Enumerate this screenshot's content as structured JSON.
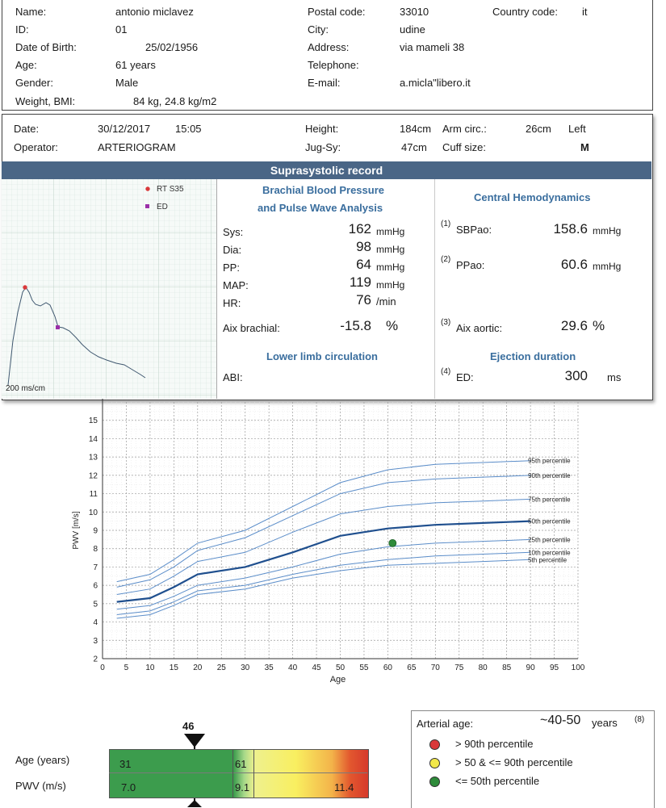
{
  "patient": {
    "name_label": "Name:",
    "name": "antonio miclavez",
    "id_label": "ID:",
    "id": "01",
    "dob_label": "Date of Birth:",
    "dob": "25/02/1956",
    "age_label": "Age:",
    "age": "61 years",
    "gender_label": "Gender:",
    "gender": "Male",
    "weight_label": "Weight, BMI:",
    "weight_bmi": "84 kg,  24.8 kg/m2",
    "postal_label": "Postal code:",
    "postal": "33010",
    "country_label": "Country code:",
    "country": "it",
    "city_label": "City:",
    "city": "udine",
    "address_label": "Address:",
    "address": "via mameli 38",
    "telephone_label": "Telephone:",
    "telephone": "",
    "email_label": "E-mail:",
    "email": "a.micla\"libero.it"
  },
  "session": {
    "date_label": "Date:",
    "date": "30/12/2017",
    "time": "15:05",
    "operator_label": "Operator:",
    "operator": "ARTERIOGRAM",
    "height_label": "Height:",
    "height": "184cm",
    "jugsy_label": "Jug-Sy:",
    "jugsy": "47cm",
    "arm_label": "Arm circ.:",
    "arm": "26cm",
    "arm_side": "Left",
    "cuff_label": "Cuff size:",
    "cuff": "M"
  },
  "record_title": "Suprasystolic record",
  "waveform": {
    "legend_rt": "RT S35",
    "legend_ed": "ED",
    "scale": "200 ms/cm",
    "color_rt": "#d9383a",
    "color_ed": "#9b2fa8"
  },
  "brachial": {
    "title_line1": "Brachial Blood Pressure",
    "title_line2": "and Pulse Wave Analysis",
    "sys_label": "Sys:",
    "sys": "162",
    "sys_unit": "mmHg",
    "dia_label": "Dia:",
    "dia": "98",
    "dia_unit": "mmHg",
    "pp_label": "PP:",
    "pp": "64",
    "pp_unit": "mmHg",
    "map_label": "MAP:",
    "map": "119",
    "map_unit": "mmHg",
    "hr_label": "HR:",
    "hr": "76",
    "hr_unit": "/min",
    "aix_label": "Aix brachial:",
    "aix": "-15.8",
    "aix_unit": "%"
  },
  "lower_limb": {
    "title": "Lower limb circulation",
    "abi_label": "ABI:",
    "abi": ""
  },
  "central": {
    "title": "Central Hemodynamics",
    "sbpao_ref": "(1)",
    "sbpao_label": "SBPao:",
    "sbpao": "158.6",
    "sbpao_unit": "mmHg",
    "ppao_ref": "(2)",
    "ppao_label": "PPao:",
    "ppao": "60.6",
    "ppao_unit": "mmHg",
    "aixao_ref": "(3)",
    "aixao_label": "Aix aortic:",
    "aixao": "29.6",
    "aixao_unit": "%"
  },
  "ejection": {
    "title": "Ejection duration",
    "ed_ref": "(4)",
    "ed_label": "ED:",
    "ed": "300",
    "ed_unit": "ms"
  },
  "chart_data": {
    "type": "line",
    "xlabel": "Age",
    "ylabel": "PWV [m/s]",
    "xlim": [
      0,
      100
    ],
    "ylim": [
      2,
      16
    ],
    "xticks": [
      0,
      5,
      10,
      15,
      20,
      25,
      30,
      35,
      40,
      45,
      50,
      55,
      60,
      65,
      70,
      75,
      80,
      85,
      90,
      95,
      100
    ],
    "yticks": [
      2,
      3,
      4,
      5,
      6,
      7,
      8,
      9,
      10,
      11,
      12,
      13,
      14,
      15
    ],
    "grid": true,
    "x": [
      3,
      10,
      15,
      20,
      30,
      40,
      50,
      60,
      70,
      80,
      90
    ],
    "series": [
      {
        "name": "95th percentile",
        "values": [
          6.2,
          6.6,
          7.4,
          8.3,
          9.0,
          10.3,
          11.6,
          12.3,
          12.6,
          12.7,
          12.8
        ]
      },
      {
        "name": "90th percentile",
        "values": [
          5.9,
          6.3,
          7.0,
          7.9,
          8.6,
          9.8,
          11.0,
          11.6,
          11.8,
          11.9,
          12.0
        ]
      },
      {
        "name": "75th percentile",
        "values": [
          5.5,
          5.8,
          6.5,
          7.3,
          7.8,
          8.9,
          9.9,
          10.3,
          10.5,
          10.6,
          10.7
        ]
      },
      {
        "name": "50th percentile",
        "values": [
          5.1,
          5.3,
          5.9,
          6.6,
          7.0,
          7.8,
          8.7,
          9.1,
          9.3,
          9.4,
          9.5
        ]
      },
      {
        "name": "25th percentile",
        "values": [
          4.7,
          4.9,
          5.4,
          6.0,
          6.4,
          7.0,
          7.7,
          8.1,
          8.3,
          8.4,
          8.5
        ]
      },
      {
        "name": "10th percentile",
        "values": [
          4.4,
          4.6,
          5.1,
          5.7,
          6.0,
          6.6,
          7.1,
          7.4,
          7.6,
          7.7,
          7.8
        ]
      },
      {
        "name": "5th percentile",
        "values": [
          4.2,
          4.4,
          4.9,
          5.5,
          5.8,
          6.4,
          6.8,
          7.1,
          7.2,
          7.3,
          7.4
        ]
      }
    ],
    "bold_series": "50th percentile",
    "patient_point": {
      "x": 61,
      "y": 8.3
    },
    "line_color": "#5b8dc9",
    "bold_color": "#1f4f8e",
    "point_color": "#2e8b3a"
  },
  "arterial": {
    "marker_value": "46",
    "age_label": "Age (years)",
    "pwv_label": "PWV (m/s)",
    "seg1_age": "31",
    "seg1_pwv": "7.0",
    "seg2_age": "61",
    "seg2_pwv": "9.1",
    "seg3_pwv": "11.4",
    "title": "Arterial age:",
    "value": "~40-50",
    "value_unit": "years",
    "ref": "(8)",
    "legend": [
      {
        "label": "> 90th percentile",
        "color": "#d9383a"
      },
      {
        "label": "> 50 & <= 90th percentile",
        "color": "#f2e84a"
      },
      {
        "label": "<= 50th percentile",
        "color": "#2e8b3a"
      }
    ]
  }
}
